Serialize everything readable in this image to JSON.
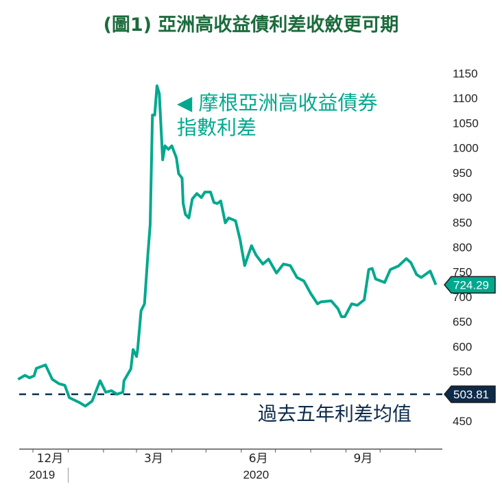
{
  "title": "(圖1) 亞洲高收益債利差收斂更可期",
  "chart_data": {
    "type": "line",
    "title": "(圖1) 亞洲高收益債利差收斂更可期",
    "x_unit": "days since 2019-12-01",
    "series": [
      {
        "name": "摩根亞洲高收益債券指數利差",
        "color": "#00a88e",
        "x": [
          -13,
          -7,
          -3,
          1,
          3,
          11,
          17,
          23,
          28,
          32,
          41,
          46,
          52,
          59,
          64,
          69,
          74,
          79,
          80,
          86,
          88,
          91,
          92,
          95,
          98,
          101,
          103,
          104,
          105,
          107,
          109,
          111,
          114,
          116,
          119,
          122,
          126,
          128,
          131,
          132,
          134,
          137,
          140,
          144,
          148,
          151,
          156,
          159,
          162,
          165,
          169,
          172,
          178,
          182,
          186,
          192,
          196,
          202,
          207,
          214,
          220,
          226,
          232,
          238,
          244,
          250,
          253,
          262,
          268,
          271,
          274,
          280,
          285,
          291,
          295,
          298,
          301,
          309,
          314,
          321,
          328,
          332,
          337,
          341,
          349,
          354
        ],
        "y": [
          534,
          542,
          537,
          541,
          556,
          563,
          534,
          525,
          522,
          497,
          487,
          480,
          490,
          531,
          508,
          511,
          504,
          508,
          531,
          555,
          594,
          580,
          594,
          672,
          686,
          787,
          846,
          953,
          1066,
          1066,
          1125,
          1109,
          976,
          1004,
          997,
          1004,
          980,
          948,
          939,
          888,
          866,
          859,
          897,
          908,
          900,
          911,
          911,
          890,
          888,
          893,
          849,
          859,
          853,
          815,
          763,
          803,
          784,
          766,
          776,
          748,
          766,
          763,
          739,
          732,
          707,
          686,
          690,
          692,
          676,
          660,
          660,
          686,
          683,
          694,
          755,
          757,
          736,
          729,
          755,
          762,
          777,
          769,
          745,
          739,
          752,
          724.29
        ]
      }
    ],
    "reference_line": {
      "name": "過去五年利差均值",
      "value": 503.81,
      "color": "#0d2a4a"
    },
    "last_value_label": "724.29",
    "average_label": "503.81",
    "annotation_line1": "◀ 摩根亞洲高收益債券",
    "annotation_line2": "指數利差",
    "average_text": "過去五年利差均值",
    "ylim": [
      450,
      1150
    ],
    "yticks": [
      "1150",
      "1100",
      "1050",
      "1000",
      "950",
      "900",
      "850",
      "800",
      "750",
      "700",
      "650",
      "600",
      "550",
      "450"
    ],
    "ytick_values": [
      1150,
      1100,
      1050,
      1000,
      950,
      900,
      850,
      800,
      750,
      700,
      650,
      600,
      550,
      450
    ],
    "month_ticks": [
      0,
      31,
      62,
      91,
      122,
      152,
      183,
      213,
      244,
      275,
      305,
      336
    ],
    "xtick_labels": [
      {
        "label": "12月",
        "day": 15
      },
      {
        "label": "3月",
        "day": 106
      },
      {
        "label": "6月",
        "day": 198
      },
      {
        "label": "9月",
        "day": 290
      }
    ],
    "year_labels": [
      {
        "label": "2019",
        "day": 8
      },
      {
        "label": "2020",
        "day": 196
      }
    ],
    "year_divider_day": 31,
    "yaxis_position": "right"
  }
}
